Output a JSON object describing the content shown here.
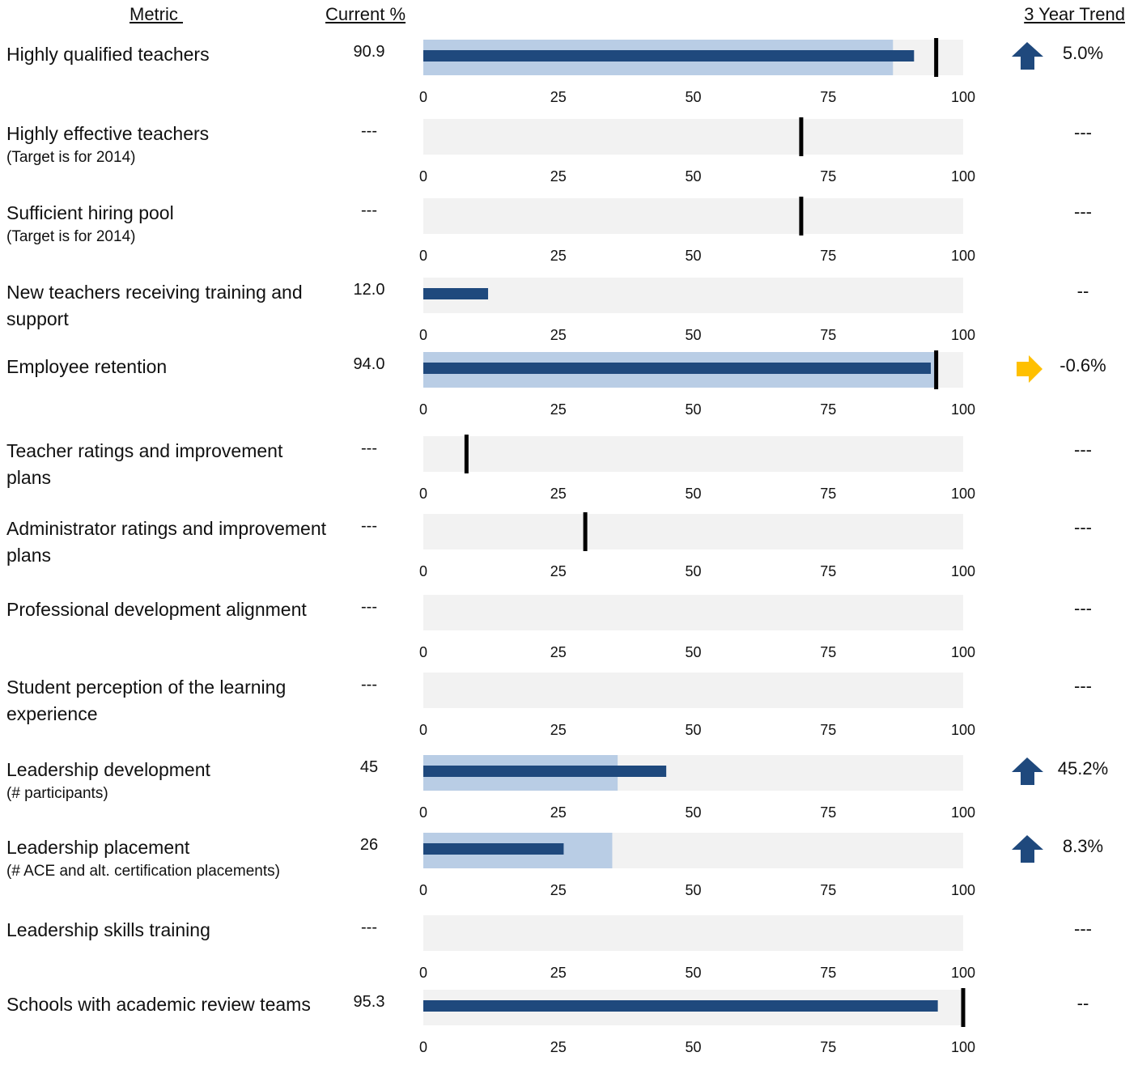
{
  "headers": {
    "metric": "Metric ",
    "current": "Current %",
    "trend": "3 Year Trend"
  },
  "colors": {
    "track": "#f2f2f2",
    "band": "#b9cde5",
    "bar": "#1f497d",
    "target": "#000000",
    "up_arrow": "#1f497d",
    "right_arrow": "#ffc000"
  },
  "chart_data": {
    "type": "bullet",
    "xlim": [
      0,
      100
    ],
    "ticks": [
      0,
      25,
      50,
      75,
      100
    ],
    "rows": [
      {
        "label": "Highly qualified teachers",
        "note": "",
        "current": "90.9",
        "value": 90.9,
        "band": 87,
        "target": 95,
        "trend": "5.0%",
        "trend_icon": "up"
      },
      {
        "label": "Highly effective teachers",
        "note": "(Target is for 2014)",
        "current": "---",
        "value": null,
        "band": null,
        "target": 70,
        "trend": "---",
        "trend_icon": ""
      },
      {
        "label": "Sufficient hiring pool",
        "note": "(Target is for 2014)",
        "current": "---",
        "value": null,
        "band": null,
        "target": 70,
        "trend": "---",
        "trend_icon": ""
      },
      {
        "label": "New teachers receiving training and support",
        "note": "",
        "current": "12.0",
        "value": 12,
        "band": null,
        "target": null,
        "trend": "--",
        "trend_icon": ""
      },
      {
        "label": "Employee retention",
        "note": "",
        "current": "94.0",
        "value": 94,
        "band": 95,
        "target": 95,
        "trend": "-0.6%",
        "trend_icon": "right"
      },
      {
        "label": "Teacher ratings and improvement plans",
        "note": "",
        "current": "---",
        "value": null,
        "band": null,
        "target": 8,
        "trend": "---",
        "trend_icon": ""
      },
      {
        "label": "Administrator ratings and improvement plans",
        "note": "",
        "current": "---",
        "value": null,
        "band": null,
        "target": 30,
        "trend": "---",
        "trend_icon": ""
      },
      {
        "label": "Professional development alignment",
        "note": "",
        "current": "---",
        "value": null,
        "band": null,
        "target": null,
        "trend": "---",
        "trend_icon": ""
      },
      {
        "label": "Student perception of the learning experience",
        "note": "",
        "current": "---",
        "value": null,
        "band": null,
        "target": null,
        "trend": "---",
        "trend_icon": ""
      },
      {
        "label": "Leadership development",
        "note": "(# participants)",
        "current": "45",
        "value": 45,
        "band": 36,
        "target": null,
        "trend": "45.2%",
        "trend_icon": "up"
      },
      {
        "label": "Leadership placement",
        "note": "(# ACE and alt. certification placements)",
        "current": "26",
        "value": 26,
        "band": 35,
        "target": null,
        "trend": "8.3%",
        "trend_icon": "up"
      },
      {
        "label": "Leadership skills training",
        "note": "",
        "current": "---",
        "value": null,
        "band": null,
        "target": null,
        "trend": "---",
        "trend_icon": ""
      },
      {
        "label": "Schools with academic review teams",
        "note": "",
        "current": "95.3",
        "value": 95.3,
        "band": null,
        "target": 100,
        "trend": "--",
        "trend_icon": ""
      }
    ]
  }
}
